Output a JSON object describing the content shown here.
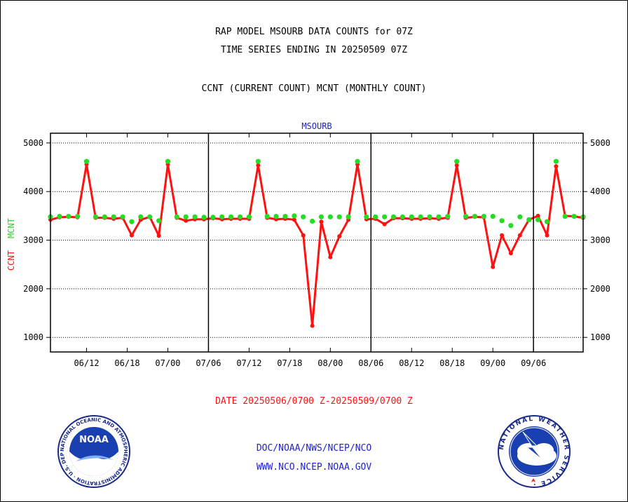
{
  "header": {
    "title_line1": "RAP MODEL MSOURB DATA COUNTS for 07Z",
    "title_line2": "TIME SERIES ENDING IN 20250509 07Z",
    "subtitle": "CCNT (CURRENT COUNT) MCNT (MONTHLY COUNT)"
  },
  "footer": {
    "date_range": "DATE 20250506/0700 Z-20250509/0700 Z",
    "org": "DOC/NOAA/NWS/NCEP/NCO",
    "url": "WWW.NCO.NCEP.NOAA.GOV"
  },
  "logos": {
    "noaa_text": "NOAA",
    "noaa_ring_text": "NATIONAL OCEANIC AND ATMOSPHERIC ADMINISTRATION · U.S. DEPARTMENT OF COMMERCE ·",
    "nws_ring_text": "NATIONAL WEATHER SERVICE ·"
  },
  "colors": {
    "ccnt": "#ff1111",
    "mcnt": "#22dd22",
    "plot_title": "#2222cc",
    "footer_red": "#ff1111",
    "footer_blue": "#2222cc"
  },
  "chart_data": {
    "type": "line",
    "plot_title": "MSOURB",
    "ylabel_ccnt": "CCNT",
    "ylabel_mcnt": "MCNT",
    "ylim": [
      700,
      5200
    ],
    "yticks": [
      1000,
      2000,
      3000,
      4000,
      5000
    ],
    "xlim": [
      0,
      59
    ],
    "xtick_positions": [
      4,
      8.5,
      13,
      17.5,
      22,
      26.5,
      31,
      35.5,
      40,
      44.5,
      49,
      53.5
    ],
    "xtick_labels": [
      "06/12",
      "06/18",
      "07/00",
      "07/06",
      "07/12",
      "07/18",
      "08/00",
      "08/06",
      "08/12",
      "08/18",
      "09/00",
      "09/06"
    ],
    "day_dividers": [
      17.5,
      35.5,
      53.5
    ],
    "grid": true,
    "series": [
      {
        "name": "CCNT",
        "x": [
          0,
          1,
          2,
          3,
          4,
          5,
          6,
          7,
          8,
          9,
          10,
          11,
          12,
          13,
          14,
          15,
          16,
          17,
          18,
          19,
          20,
          21,
          22,
          23,
          24,
          25,
          26,
          27,
          28,
          29,
          30,
          31,
          32,
          33,
          34,
          35,
          36,
          37,
          38,
          39,
          40,
          41,
          42,
          43,
          44,
          45,
          46,
          47,
          48,
          49,
          50,
          51,
          52,
          53,
          54,
          55,
          56,
          57,
          58,
          59
        ],
        "values": [
          3420,
          3470,
          3480,
          3470,
          4560,
          3460,
          3460,
          3440,
          3460,
          3100,
          3420,
          3480,
          3090,
          4560,
          3460,
          3400,
          3430,
          3430,
          3450,
          3430,
          3440,
          3440,
          3440,
          4540,
          3460,
          3430,
          3440,
          3420,
          3100,
          1240,
          3380,
          2650,
          3080,
          3420,
          4560,
          3430,
          3440,
          3330,
          3450,
          3450,
          3440,
          3440,
          3450,
          3440,
          3460,
          4540,
          3460,
          3480,
          3470,
          2450,
          3100,
          2730,
          3100,
          3420,
          3500,
          3100,
          4520,
          3500,
          3490,
          3460
        ]
      },
      {
        "name": "MCNT",
        "x": [
          0,
          1,
          2,
          3,
          4,
          5,
          6,
          7,
          8,
          9,
          10,
          11,
          12,
          13,
          14,
          15,
          16,
          17,
          18,
          19,
          20,
          21,
          22,
          23,
          24,
          25,
          26,
          27,
          28,
          29,
          30,
          31,
          32,
          33,
          34,
          35,
          36,
          37,
          38,
          39,
          40,
          41,
          42,
          43,
          44,
          45,
          46,
          47,
          48,
          49,
          50,
          51,
          52,
          53,
          54,
          55,
          56,
          57,
          58,
          59
        ],
        "values": [
          3480,
          3490,
          3490,
          3490,
          4620,
          3480,
          3480,
          3480,
          3480,
          3380,
          3480,
          3480,
          3400,
          4620,
          3480,
          3480,
          3480,
          3470,
          3470,
          3480,
          3480,
          3480,
          3480,
          4620,
          3490,
          3490,
          3490,
          3500,
          3480,
          3390,
          3480,
          3480,
          3480,
          3480,
          4620,
          3480,
          3480,
          3480,
          3480,
          3480,
          3480,
          3480,
          3480,
          3480,
          3490,
          4620,
          3490,
          3490,
          3490,
          3490,
          3400,
          3300,
          3480,
          3420,
          3420,
          3380,
          4620,
          3490,
          3490,
          3480
        ]
      }
    ]
  }
}
